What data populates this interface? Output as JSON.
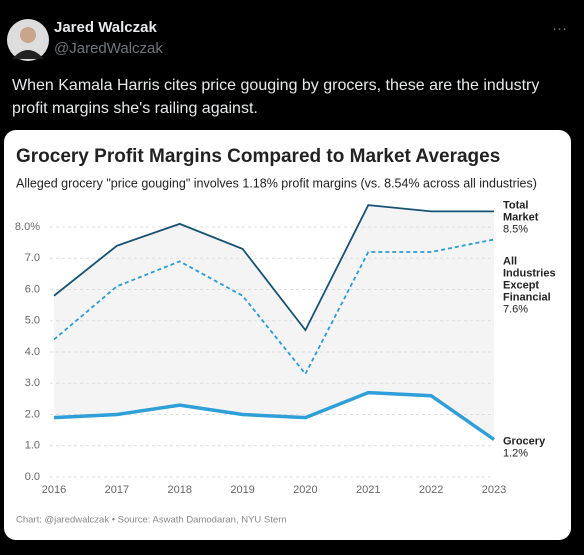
{
  "tweet": {
    "author": "Jared Walczak",
    "handle": "@JaredWalczak",
    "menu": "···",
    "text": "When Kamala Harris cites price gouging by grocers, these are the industry profit margins she's railing against."
  },
  "chart_data": {
    "type": "line",
    "title": "Grocery Profit Margins Compared to Market Averages",
    "subtitle": "Alleged grocery \"price gouging\" involves 1.18% profit margins (vs. 8.54% across all industries)",
    "source": "Chart: @jaredwalczak • Source: Aswath Damodaran, NYU Stern",
    "x": [
      2016,
      2017,
      2018,
      2019,
      2020,
      2021,
      2022,
      2023
    ],
    "xlim": [
      2016,
      2023
    ],
    "ylim": [
      0,
      8
    ],
    "yticks": [
      {
        "value": 0,
        "label": "0.0"
      },
      {
        "value": 1,
        "label": "1.0"
      },
      {
        "value": 2,
        "label": "2.0"
      },
      {
        "value": 3,
        "label": "3.0"
      },
      {
        "value": 4,
        "label": "4.0"
      },
      {
        "value": 5,
        "label": "5.0"
      },
      {
        "value": 6,
        "label": "6.0"
      },
      {
        "value": 7,
        "label": "7.0"
      },
      {
        "value": 8,
        "label": "8.0%"
      }
    ],
    "grid": true,
    "series": [
      {
        "name": "Total Market",
        "color": "#175273",
        "style": "solid",
        "values": [
          5.8,
          7.4,
          8.1,
          7.3,
          4.7,
          8.7,
          8.5,
          8.5
        ],
        "value_labels": [
          null,
          null,
          null,
          null,
          null,
          null,
          null,
          "8.5%"
        ]
      },
      {
        "name": "All Industries Except Financial",
        "color": "#2b9bd1",
        "style": "dashed",
        "values": [
          4.4,
          6.1,
          6.9,
          5.8,
          3.3,
          7.2,
          7.2,
          7.6
        ],
        "value_labels": [
          null,
          null,
          null,
          null,
          null,
          null,
          null,
          "7.6%"
        ]
      },
      {
        "name": "Grocery",
        "color": "#2e9fd8",
        "style": "thick",
        "values": [
          1.9,
          2.0,
          2.3,
          2.0,
          1.9,
          2.7,
          2.6,
          1.2
        ],
        "value_labels": [
          null,
          null,
          null,
          null,
          null,
          null,
          null,
          "1.2%"
        ]
      }
    ]
  }
}
